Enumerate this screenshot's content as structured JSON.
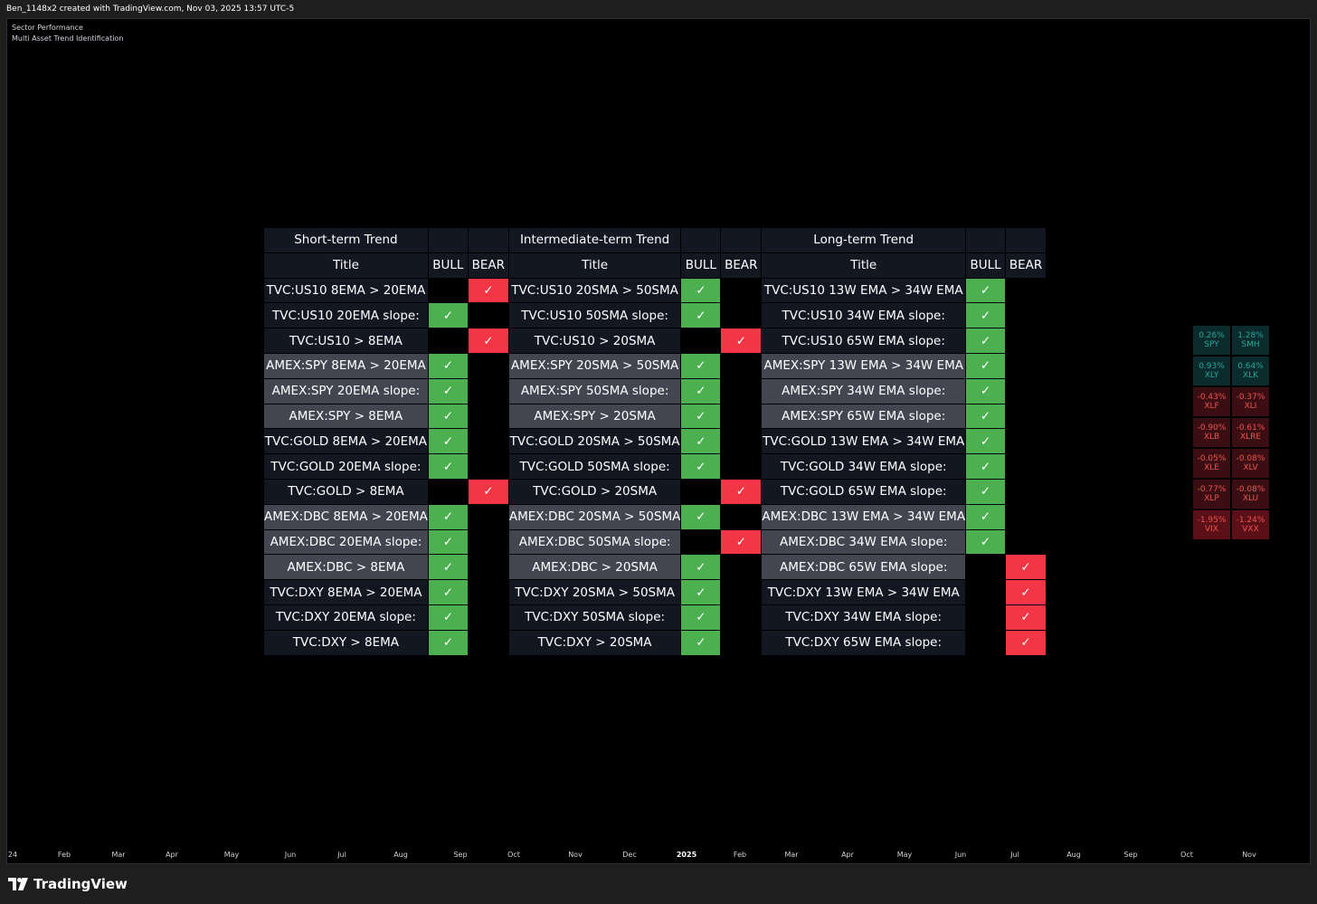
{
  "header": {
    "caption": "Ben_1148x2 created with TradingView.com, Nov 03, 2025 13:57 UTC-5"
  },
  "indicators": [
    "Sector Performance",
    "Multi Asset Trend Identification"
  ],
  "table": {
    "groups": [
      "Short-term Trend",
      "Intermediate-term Trend",
      "Long-term Trend"
    ],
    "col_headers": {
      "title": "Title",
      "bull": "BULL",
      "bear": "BEAR"
    },
    "check_glyph": "✓",
    "rows": [
      {
        "shade": "dark",
        "cells": [
          {
            "t": "TVC:US10 8EMA > 20EMA",
            "s": "bear"
          },
          {
            "t": "TVC:US10 20SMA > 50SMA",
            "s": "bull"
          },
          {
            "t": "TVC:US10 13W EMA > 34W EMA",
            "s": "bull"
          }
        ]
      },
      {
        "shade": "dark",
        "cells": [
          {
            "t": "TVC:US10 20EMA slope:",
            "s": "bull"
          },
          {
            "t": "TVC:US10 50SMA slope:",
            "s": "bull"
          },
          {
            "t": "TVC:US10 34W EMA slope:",
            "s": "bull"
          }
        ]
      },
      {
        "shade": "dark",
        "cells": [
          {
            "t": "TVC:US10 > 8EMA",
            "s": "bear"
          },
          {
            "t": "TVC:US10 > 20SMA",
            "s": "bear"
          },
          {
            "t": "TVC:US10 65W EMA slope:",
            "s": "bull"
          }
        ]
      },
      {
        "shade": "grey",
        "cells": [
          {
            "t": "AMEX:SPY 8EMA > 20EMA",
            "s": "bull"
          },
          {
            "t": "AMEX:SPY 20SMA > 50SMA",
            "s": "bull"
          },
          {
            "t": "AMEX:SPY 13W EMA > 34W EMA",
            "s": "bull"
          }
        ]
      },
      {
        "shade": "grey",
        "cells": [
          {
            "t": "AMEX:SPY 20EMA slope:",
            "s": "bull"
          },
          {
            "t": "AMEX:SPY 50SMA slope:",
            "s": "bull"
          },
          {
            "t": "AMEX:SPY 34W EMA slope:",
            "s": "bull"
          }
        ]
      },
      {
        "shade": "grey",
        "cells": [
          {
            "t": "AMEX:SPY > 8EMA",
            "s": "bull"
          },
          {
            "t": "AMEX:SPY > 20SMA",
            "s": "bull"
          },
          {
            "t": "AMEX:SPY 65W EMA slope:",
            "s": "bull"
          }
        ]
      },
      {
        "shade": "dark",
        "cells": [
          {
            "t": "TVC:GOLD 8EMA > 20EMA",
            "s": "bull"
          },
          {
            "t": "TVC:GOLD 20SMA > 50SMA",
            "s": "bull"
          },
          {
            "t": "TVC:GOLD 13W EMA > 34W EMA",
            "s": "bull"
          }
        ]
      },
      {
        "shade": "dark",
        "cells": [
          {
            "t": "TVC:GOLD 20EMA slope:",
            "s": "bull"
          },
          {
            "t": "TVC:GOLD 50SMA slope:",
            "s": "bull"
          },
          {
            "t": "TVC:GOLD 34W EMA slope:",
            "s": "bull"
          }
        ]
      },
      {
        "shade": "dark",
        "cells": [
          {
            "t": "TVC:GOLD > 8EMA",
            "s": "bear"
          },
          {
            "t": "TVC:GOLD > 20SMA",
            "s": "bear"
          },
          {
            "t": "TVC:GOLD 65W EMA slope:",
            "s": "bull"
          }
        ]
      },
      {
        "shade": "grey",
        "cells": [
          {
            "t": "AMEX:DBC 8EMA > 20EMA",
            "s": "bull"
          },
          {
            "t": "AMEX:DBC 20SMA > 50SMA",
            "s": "bull"
          },
          {
            "t": "AMEX:DBC 13W EMA > 34W EMA",
            "s": "bull"
          }
        ]
      },
      {
        "shade": "grey",
        "cells": [
          {
            "t": "AMEX:DBC 20EMA slope:",
            "s": "bull"
          },
          {
            "t": "AMEX:DBC 50SMA slope:",
            "s": "bear"
          },
          {
            "t": "AMEX:DBC 34W EMA slope:",
            "s": "bull"
          }
        ]
      },
      {
        "shade": "grey",
        "cells": [
          {
            "t": "AMEX:DBC > 8EMA",
            "s": "bull"
          },
          {
            "t": "AMEX:DBC > 20SMA",
            "s": "bull"
          },
          {
            "t": "AMEX:DBC 65W EMA slope:",
            "s": "bear"
          }
        ]
      },
      {
        "shade": "dark",
        "cells": [
          {
            "t": "TVC:DXY 8EMA > 20EMA",
            "s": "bull"
          },
          {
            "t": "TVC:DXY 20SMA > 50SMA",
            "s": "bull"
          },
          {
            "t": "TVC:DXY 13W EMA > 34W EMA",
            "s": "bear"
          }
        ]
      },
      {
        "shade": "dark",
        "cells": [
          {
            "t": "TVC:DXY 20EMA slope:",
            "s": "bull"
          },
          {
            "t": "TVC:DXY 50SMA slope:",
            "s": "bull"
          },
          {
            "t": "TVC:DXY 34W EMA slope:",
            "s": "bear"
          }
        ]
      },
      {
        "shade": "dark",
        "cells": [
          {
            "t": "TVC:DXY > 8EMA",
            "s": "bull"
          },
          {
            "t": "TVC:DXY > 20SMA",
            "s": "bull"
          },
          {
            "t": "TVC:DXY 65W EMA slope:",
            "s": "bear"
          }
        ]
      }
    ]
  },
  "sectors": [
    {
      "pct": "0.26%",
      "sym": "SPY",
      "tone": "pos"
    },
    {
      "pct": "1.28%",
      "sym": "SMH",
      "tone": "pos"
    },
    {
      "pct": "0.93%",
      "sym": "XLY",
      "tone": "pos"
    },
    {
      "pct": "0.64%",
      "sym": "XLK",
      "tone": "pos"
    },
    {
      "pct": "-0.43%",
      "sym": "XLF",
      "tone": "neg"
    },
    {
      "pct": "-0.37%",
      "sym": "XLI",
      "tone": "neg"
    },
    {
      "pct": "-0.90%",
      "sym": "XLB",
      "tone": "neg"
    },
    {
      "pct": "-0.61%",
      "sym": "XLRE",
      "tone": "neg"
    },
    {
      "pct": "-0.05%",
      "sym": "XLE",
      "tone": "neg"
    },
    {
      "pct": "-0.08%",
      "sym": "XLV",
      "tone": "neg"
    },
    {
      "pct": "-0.77%",
      "sym": "XLP",
      "tone": "neg"
    },
    {
      "pct": "-0.08%",
      "sym": "XLU",
      "tone": "neg"
    },
    {
      "pct": "-1.95%",
      "sym": "VIX",
      "tone": "neg-strong"
    },
    {
      "pct": "-1.24%",
      "sym": "VXX",
      "tone": "neg-strong"
    }
  ],
  "xaxis": [
    "24",
    "Feb",
    "Mar",
    "Apr",
    "May",
    "Jun",
    "Jul",
    "Aug",
    "Sep",
    "Oct",
    "Nov",
    "Dec",
    "2025",
    "Feb",
    "Mar",
    "Apr",
    "May",
    "Jun",
    "Jul",
    "Aug",
    "Sep",
    "Oct",
    "Nov"
  ],
  "xaxis_bold": "2025",
  "footer": {
    "logo_text": "TradingView"
  },
  "colors": {
    "bull": "#4caf50",
    "bear": "#f23645",
    "pos": "#26a69a",
    "neg": "#ef5350"
  }
}
